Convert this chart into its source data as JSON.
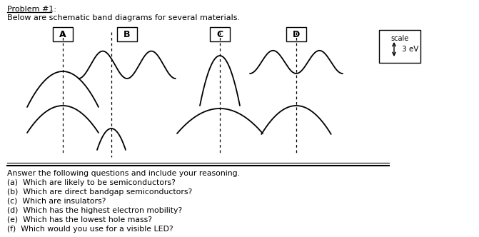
{
  "title": "Problem #1:",
  "subtitle": "Below are schematic band diagrams for several materials.",
  "labels": [
    "A",
    "B",
    "C",
    "D"
  ],
  "scale_label": "scale",
  "scale_text": "3 eV",
  "questions": [
    "Answer the following questions and include your reasoning.",
    "(a)  Which are likely to be semiconductors?",
    "(b)  Which are direct bandgap semiconductors?",
    "(c)  Which are insulators?",
    "(d)  Which has the highest electron mobility?",
    "(e)  Which has the lowest hole mass?",
    "(f)  Which would you use for a visible LED?"
  ],
  "bg_color": "#ffffff",
  "line_color": "#000000"
}
